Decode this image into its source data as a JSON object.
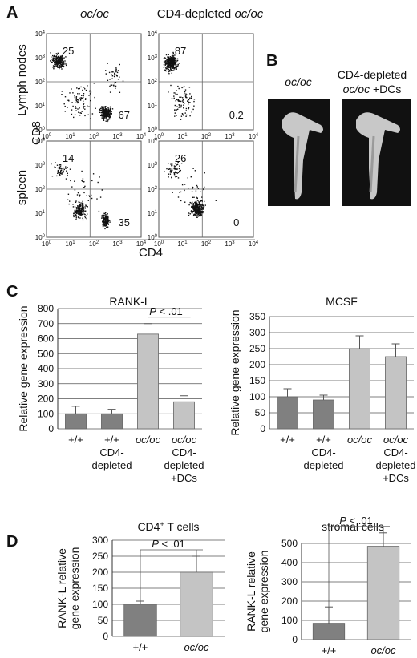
{
  "panel_labels": [
    "A",
    "B",
    "C",
    "D"
  ],
  "panel_a": {
    "col_titles": [
      "oc/oc",
      "CD4-depleted oc/oc"
    ],
    "col_title_parts": [
      {
        "plain": "",
        "italic": "oc/oc"
      },
      {
        "plain": "CD4-depleted ",
        "italic": "oc/oc"
      }
    ],
    "row_labels": [
      "Lymph nodes",
      "spleen"
    ],
    "y_axis_label": "CD8",
    "x_axis_label": "CD4",
    "axis_tick_exponents": [
      "0",
      "1",
      "2",
      "3",
      "4"
    ],
    "axis_tick_base": "10",
    "plots": [
      {
        "row": 0,
        "col": 0,
        "upper_left": "25",
        "lower_right": "67"
      },
      {
        "row": 0,
        "col": 1,
        "upper_left": "87",
        "lower_right": "0.2"
      },
      {
        "row": 1,
        "col": 0,
        "upper_left": "14",
        "lower_right": "35"
      },
      {
        "row": 1,
        "col": 1,
        "upper_left": "26",
        "lower_right": "0"
      }
    ]
  },
  "panel_b": {
    "labels": [
      {
        "lines": [
          {
            "plain": "",
            "italic": "oc/oc"
          }
        ]
      },
      {
        "lines": [
          {
            "plain": "CD4-depleted",
            "italic": ""
          },
          {
            "plain": "",
            "italic": "oc/oc",
            "suffix": " +DCs"
          }
        ]
      }
    ]
  },
  "chart_data": [
    {
      "type": "bar",
      "title": "RANK-L",
      "ylabel": "Relative gene expression",
      "ylim": [
        0,
        800
      ],
      "yticks": [
        0,
        100,
        200,
        300,
        400,
        500,
        600,
        700,
        800
      ],
      "categories": [
        "+/+",
        "+/+ CD4-depleted",
        "oc/oc",
        "oc/oc CD4-depleted +DCs"
      ],
      "values": [
        100,
        100,
        630,
        180
      ],
      "errors": [
        50,
        30,
        70,
        40
      ],
      "bar_colors": [
        "#808080",
        "#808080",
        "#c4c4c4",
        "#c4c4c4"
      ],
      "annotation": "P < .01",
      "grid": true
    },
    {
      "type": "bar",
      "title": "MCSF",
      "ylabel": "Relative gene expression",
      "ylim": [
        0,
        350
      ],
      "yticks": [
        0,
        50,
        100,
        150,
        200,
        250,
        300,
        350
      ],
      "categories": [
        "+/+",
        "+/+ CD4-depleted",
        "oc/oc",
        "oc/oc CD4-depleted +DCs"
      ],
      "values": [
        100,
        90,
        250,
        225
      ],
      "errors": [
        25,
        15,
        40,
        40
      ],
      "bar_colors": [
        "#808080",
        "#808080",
        "#c4c4c4",
        "#c4c4c4"
      ],
      "grid": true
    },
    {
      "type": "bar",
      "title": "CD4+ T cells",
      "ylabel": "RANK-L relative gene expression",
      "ylim": [
        0,
        300
      ],
      "yticks": [
        0,
        50,
        100,
        150,
        200,
        250,
        300
      ],
      "categories": [
        "+/+",
        "oc/oc"
      ],
      "values": [
        100,
        200
      ],
      "errors": [
        10,
        50
      ],
      "bar_colors": [
        "#808080",
        "#c4c4c4"
      ],
      "annotation": "P < .01",
      "grid": true
    },
    {
      "type": "bar",
      "title": "stromal cells",
      "ylabel": "RANK-L relative gene expression",
      "ylim": [
        0,
        500
      ],
      "yticks": [
        0,
        100,
        200,
        300,
        400,
        500
      ],
      "categories": [
        "+/+",
        "oc/oc"
      ],
      "values": [
        85,
        485
      ],
      "errors": [
        85,
        70
      ],
      "bar_colors": [
        "#808080",
        "#c4c4c4"
      ],
      "annotation": "P < .01",
      "grid": true
    }
  ]
}
